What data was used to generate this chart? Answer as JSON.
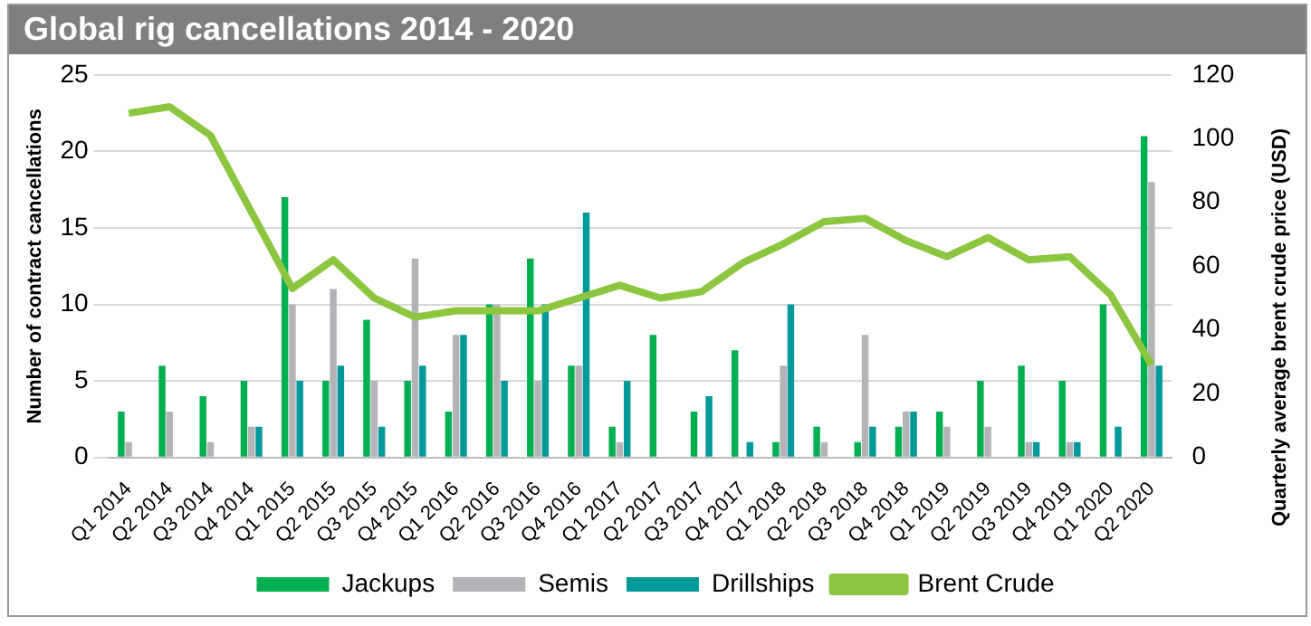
{
  "chart_data": {
    "type": "bar",
    "title": "Global rig cancellations 2014 - 2020",
    "ylabel": "Number of contract cancellations",
    "y2label": "Quarterly average brent crude price (USD)",
    "categories": [
      "Q1 2014",
      "Q2 2014",
      "Q3 2014",
      "Q4 2014",
      "Q1 2015",
      "Q2 2015",
      "Q3 2015",
      "Q4 2015",
      "Q1 2016",
      "Q2 2016",
      "Q3 2016",
      "Q4 2016",
      "Q1 2017",
      "Q2 2017",
      "Q3 2017",
      "Q4 2017",
      "Q1 2018",
      "Q2 2018",
      "Q3 2018",
      "Q4 2018",
      "Q1 2019",
      "Q2 2019",
      "Q3 2019",
      "Q4 2019",
      "Q1 2020",
      "Q2 2020"
    ],
    "series": [
      {
        "name": "Jackups",
        "color": "#00b050",
        "values": [
          3,
          6,
          4,
          5,
          17,
          5,
          9,
          5,
          3,
          10,
          13,
          6,
          2,
          8,
          3,
          7,
          1,
          2,
          1,
          2,
          3,
          5,
          6,
          5,
          10,
          21
        ]
      },
      {
        "name": "Semis",
        "color": "#b3b3b8",
        "values": [
          1,
          3,
          1,
          2,
          10,
          11,
          5,
          13,
          8,
          10,
          5,
          6,
          1,
          0,
          0,
          0,
          6,
          1,
          8,
          3,
          2,
          2,
          1,
          1,
          0,
          18
        ]
      },
      {
        "name": "Drillships",
        "color": "#009999",
        "values": [
          0,
          0,
          0,
          2,
          5,
          6,
          2,
          6,
          8,
          5,
          10,
          16,
          5,
          0,
          4,
          1,
          10,
          0,
          2,
          3,
          0,
          0,
          1,
          1,
          2,
          6
        ]
      },
      {
        "name": "Brent Crude",
        "type": "line",
        "axis": "y2",
        "color": "#8cc63f",
        "values": [
          108,
          110,
          101,
          77,
          53,
          62,
          50,
          44,
          46,
          46,
          46,
          50,
          54,
          50,
          52,
          61,
          67,
          74,
          75,
          68,
          63,
          69,
          62,
          63,
          51,
          29
        ]
      }
    ],
    "ylim": [
      0,
      25
    ],
    "yticks": [
      0,
      5,
      10,
      15,
      20,
      25
    ],
    "y2lim": [
      0,
      120
    ],
    "y2ticks": [
      0,
      20,
      40,
      60,
      80,
      100,
      120
    ],
    "grid": "y",
    "legend": "bottom",
    "marker": "none"
  }
}
